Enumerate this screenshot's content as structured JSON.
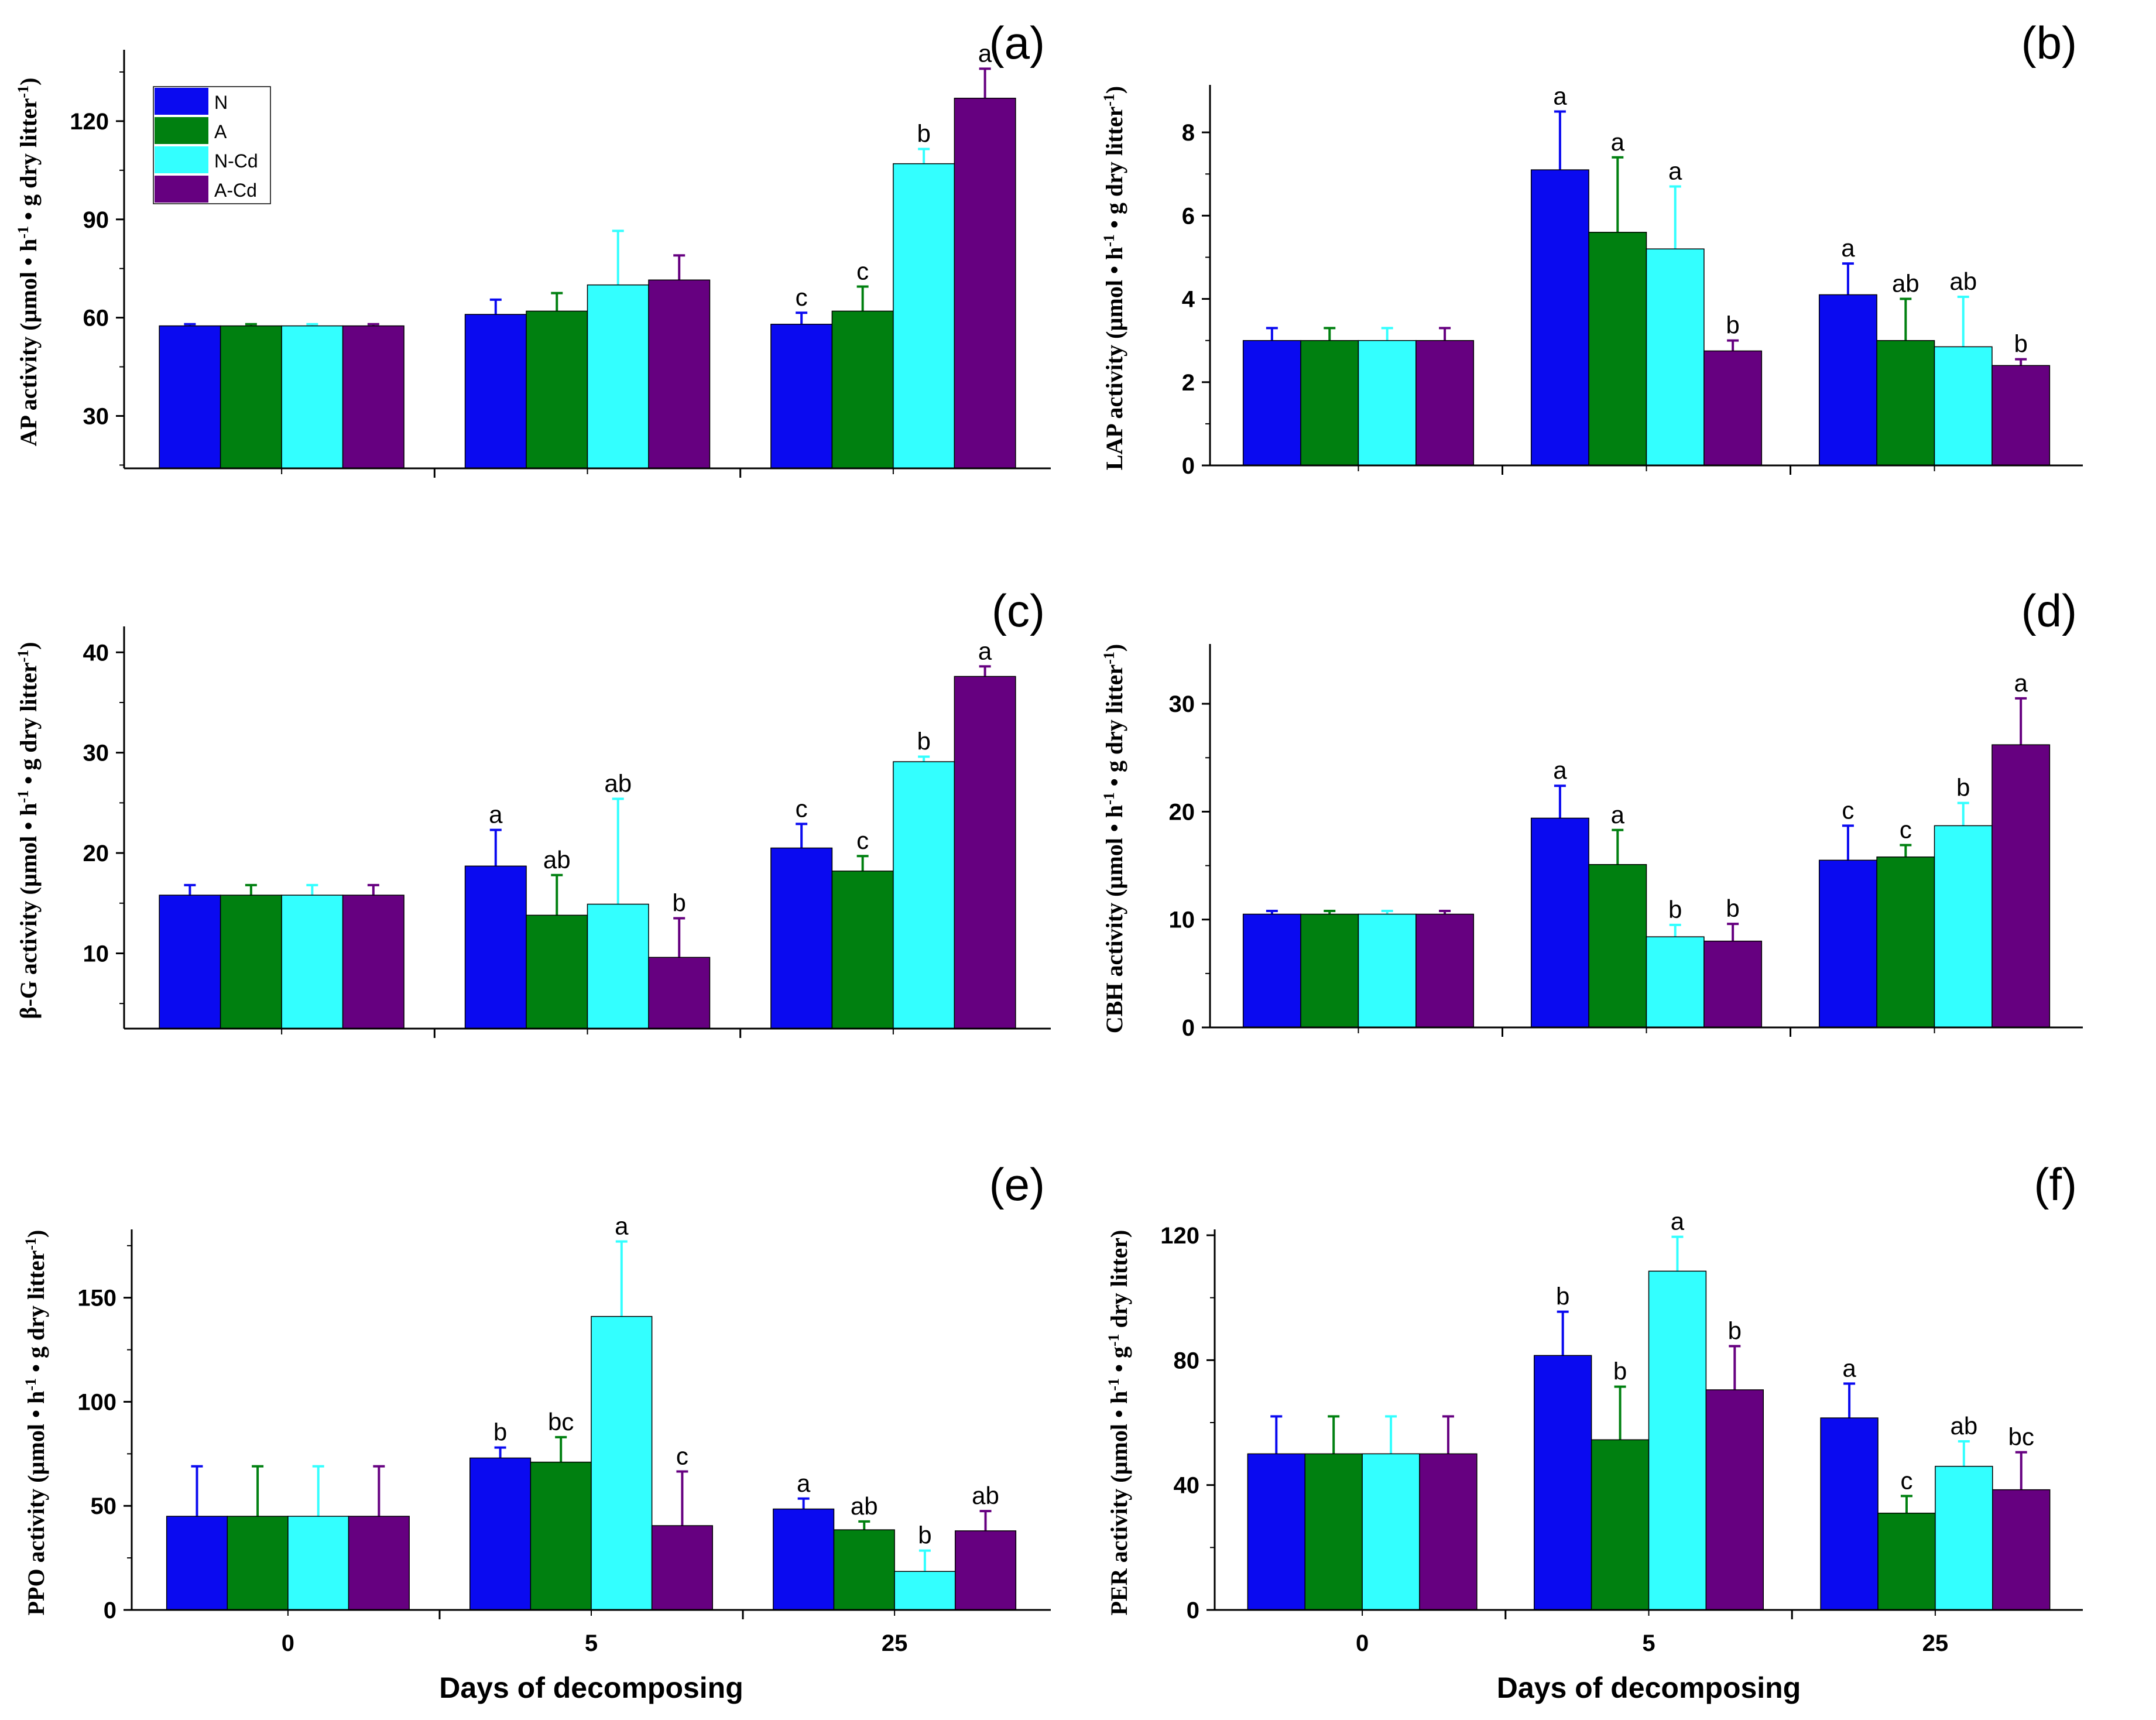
{
  "chart_data": [
    {
      "type": "bar",
      "panel_label": "(a)",
      "ylabel": "AP activity (µmol • h⁻¹ • g dry litter⁻¹)",
      "ylabel_parts": [
        "AP activity (µmol • h",
        "-1",
        " • g dry litter",
        "-1",
        ")"
      ],
      "ylim": [
        14,
        140
      ],
      "yticks": [
        30,
        60,
        90,
        120
      ],
      "categories": [
        "0",
        "5",
        "25"
      ],
      "show_x_ticklabels": false,
      "xlabel": "",
      "series": [
        {
          "name": "N",
          "color": "#0a0af0",
          "values": [
            57.5,
            61,
            58
          ],
          "errors": [
            0.5,
            4.5,
            3.5
          ],
          "letters": [
            "",
            "",
            "c"
          ]
        },
        {
          "name": "A",
          "color": "#008010",
          "values": [
            57.5,
            62,
            62
          ],
          "errors": [
            0.5,
            5.5,
            7.5
          ],
          "letters": [
            "",
            "",
            "c"
          ]
        },
        {
          "name": "N-Cd",
          "color": "#33ffff",
          "values": [
            57.5,
            70,
            107
          ],
          "errors": [
            0.5,
            16.5,
            4.5
          ],
          "letters": [
            "",
            "",
            "b"
          ]
        },
        {
          "name": "A-Cd",
          "color": "#660080",
          "values": [
            57.5,
            71.5,
            127
          ],
          "errors": [
            0.5,
            7.5,
            9
          ],
          "letters": [
            "",
            "",
            "a"
          ]
        }
      ]
    },
    {
      "type": "bar",
      "panel_label": "(b)",
      "ylabel": "LAP activity (µmol • h⁻¹ • g dry litter⁻¹)",
      "ylabel_parts": [
        "LAP activity (µmol • h",
        "-1",
        " • g dry litter",
        "-1",
        ")"
      ],
      "ylim": [
        0,
        9
      ],
      "yticks": [
        0,
        2,
        4,
        6,
        8
      ],
      "categories": [
        "0",
        "5",
        "25"
      ],
      "show_x_ticklabels": false,
      "xlabel": "",
      "series": [
        {
          "name": "N",
          "color": "#0a0af0",
          "values": [
            3.0,
            7.1,
            4.1
          ],
          "errors": [
            0.3,
            1.4,
            0.75
          ],
          "letters": [
            "",
            "a",
            "a"
          ]
        },
        {
          "name": "A",
          "color": "#008010",
          "values": [
            3.0,
            5.6,
            3.0
          ],
          "errors": [
            0.3,
            1.8,
            1.0
          ],
          "letters": [
            "",
            "a",
            "ab"
          ]
        },
        {
          "name": "N-Cd",
          "color": "#33ffff",
          "values": [
            3.0,
            5.2,
            2.85
          ],
          "errors": [
            0.3,
            1.5,
            1.2
          ],
          "letters": [
            "",
            "a",
            "ab"
          ]
        },
        {
          "name": "A-Cd",
          "color": "#660080",
          "values": [
            3.0,
            2.75,
            2.4
          ],
          "errors": [
            0.3,
            0.25,
            0.15
          ],
          "letters": [
            "",
            "b",
            "b"
          ]
        }
      ]
    },
    {
      "type": "bar",
      "panel_label": "(c)",
      "ylabel": "β-G activity (µmol • h⁻¹ • g dry litter⁻¹)",
      "ylabel_parts": [
        "β-G activity (µmol • h",
        "-1",
        " • g dry litter",
        "-1",
        ")"
      ],
      "ylim": [
        2.5,
        42
      ],
      "yticks": [
        10,
        20,
        30,
        40
      ],
      "categories": [
        "0",
        "5",
        "25"
      ],
      "show_x_ticklabels": false,
      "xlabel": "",
      "series": [
        {
          "name": "N",
          "color": "#0a0af0",
          "values": [
            15.8,
            18.7,
            20.5
          ],
          "errors": [
            1.0,
            3.6,
            2.4
          ],
          "letters": [
            "",
            "a",
            "c"
          ]
        },
        {
          "name": "A",
          "color": "#008010",
          "values": [
            15.8,
            13.8,
            18.2
          ],
          "errors": [
            1.0,
            4.0,
            1.5
          ],
          "letters": [
            "",
            "ab",
            "c"
          ]
        },
        {
          "name": "N-Cd",
          "color": "#33ffff",
          "values": [
            15.8,
            14.9,
            29.1
          ],
          "errors": [
            1.0,
            10.5,
            0.5
          ],
          "letters": [
            "",
            "ab",
            "b"
          ]
        },
        {
          "name": "A-Cd",
          "color": "#660080",
          "values": [
            15.8,
            9.6,
            37.6
          ],
          "errors": [
            1.0,
            3.9,
            1.0
          ],
          "letters": [
            "",
            "b",
            "a"
          ]
        }
      ]
    },
    {
      "type": "bar",
      "panel_label": "(d)",
      "ylabel": "CBH activity (µmol • h⁻¹ • g dry litter⁻¹)",
      "ylabel_parts": [
        "CBH activity (µmol • h",
        "-1",
        " • g dry litter",
        "-1",
        ")"
      ],
      "ylim": [
        0,
        35
      ],
      "yticks": [
        0,
        10,
        20,
        30
      ],
      "categories": [
        "0",
        "5",
        "25"
      ],
      "show_x_ticklabels": false,
      "xlabel": "",
      "series": [
        {
          "name": "N",
          "color": "#0a0af0",
          "values": [
            10.5,
            19.4,
            15.5
          ],
          "errors": [
            0.3,
            3.0,
            3.2
          ],
          "letters": [
            "",
            "a",
            "c"
          ]
        },
        {
          "name": "A",
          "color": "#008010",
          "values": [
            10.5,
            15.1,
            15.8
          ],
          "errors": [
            0.3,
            3.2,
            1.1
          ],
          "letters": [
            "",
            "a",
            "c"
          ]
        },
        {
          "name": "N-Cd",
          "color": "#33ffff",
          "values": [
            10.5,
            8.4,
            18.7
          ],
          "errors": [
            0.3,
            1.1,
            2.1
          ],
          "letters": [
            "",
            "b",
            "b"
          ]
        },
        {
          "name": "A-Cd",
          "color": "#660080",
          "values": [
            10.5,
            8.0,
            26.2
          ],
          "errors": [
            0.3,
            1.6,
            4.3
          ],
          "letters": [
            "",
            "b",
            "a"
          ]
        }
      ]
    },
    {
      "type": "bar",
      "panel_label": "(e)",
      "ylabel": "PPO activity (µmol • h⁻¹ • g dry litter⁻¹)",
      "ylabel_parts": [
        "PPO activity (µmol • h",
        "-1",
        " • g dry litter",
        "-1",
        ")"
      ],
      "ylim": [
        0,
        180
      ],
      "yticks": [
        0,
        50,
        100,
        150
      ],
      "categories": [
        "0",
        "5",
        "25"
      ],
      "show_x_ticklabels": true,
      "xlabel": "Days of decomposing",
      "series": [
        {
          "name": "N",
          "color": "#0a0af0",
          "values": [
            45,
            73,
            48.5
          ],
          "errors": [
            24,
            5,
            5
          ],
          "letters": [
            "",
            "b",
            "a"
          ]
        },
        {
          "name": "A",
          "color": "#008010",
          "values": [
            45,
            71,
            38.5
          ],
          "errors": [
            24,
            12,
            4
          ],
          "letters": [
            "",
            "bc",
            "ab"
          ]
        },
        {
          "name": "N-Cd",
          "color": "#33ffff",
          "values": [
            45,
            141,
            18.5
          ],
          "errors": [
            24,
            36,
            10
          ],
          "letters": [
            "",
            "a",
            "b"
          ]
        },
        {
          "name": "A-Cd",
          "color": "#660080",
          "values": [
            45,
            40.5,
            38
          ],
          "errors": [
            24,
            26,
            9.5
          ],
          "letters": [
            "",
            "c",
            "ab"
          ]
        }
      ]
    },
    {
      "type": "bar",
      "panel_label": "(f)",
      "ylabel": "PER activity (µmol • h⁻¹ • g⁻¹ dry litter)",
      "ylabel_parts": [
        "PER activity (µmol • h",
        "-1",
        " • g",
        "-1",
        " dry litter)"
      ],
      "ylim": [
        0,
        120
      ],
      "yticks": [
        0,
        40,
        80,
        120
      ],
      "categories": [
        "0",
        "5",
        "25"
      ],
      "show_x_ticklabels": true,
      "xlabel": "Days of decomposing",
      "series": [
        {
          "name": "N",
          "color": "#0a0af0",
          "values": [
            50,
            81.5,
            61.5
          ],
          "errors": [
            12,
            14,
            11
          ],
          "letters": [
            "",
            "b",
            "a"
          ]
        },
        {
          "name": "A",
          "color": "#008010",
          "values": [
            50,
            54.5,
            31
          ],
          "errors": [
            12,
            17,
            5.5
          ],
          "letters": [
            "",
            "b",
            "c"
          ]
        },
        {
          "name": "N-Cd",
          "color": "#33ffff",
          "values": [
            50,
            108.5,
            46
          ],
          "errors": [
            12,
            11,
            8
          ],
          "letters": [
            "",
            "a",
            "ab"
          ]
        },
        {
          "name": "A-Cd",
          "color": "#660080",
          "values": [
            50,
            70.5,
            38.5
          ],
          "errors": [
            12,
            14,
            12
          ],
          "letters": [
            "",
            "b",
            "bc"
          ]
        }
      ]
    }
  ],
  "legend": {
    "items": [
      {
        "label": "N",
        "color": "#0a0af0"
      },
      {
        "label": "A",
        "color": "#008010"
      },
      {
        "label": "N-Cd",
        "color": "#33ffff"
      },
      {
        "label": "A-Cd",
        "color": "#660080"
      }
    ]
  }
}
